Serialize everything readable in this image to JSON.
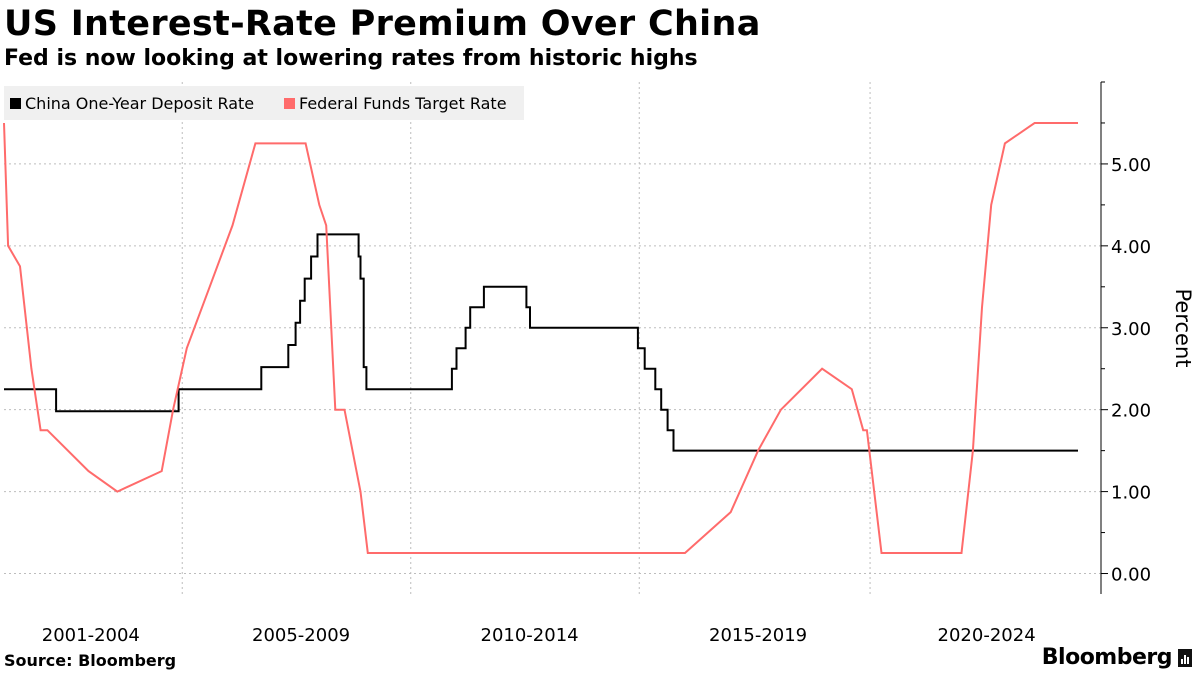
{
  "chart_data": {
    "type": "line",
    "title": "US Interest-Rate Premium Over China",
    "subtitle": "Fed is now looking at lowering rates from historic highs",
    "ylabel": "Percent",
    "xlabel": "",
    "ylim": [
      -0.25,
      6.0
    ],
    "xlim": [
      2001.0,
      2024.5
    ],
    "y_ticks": [
      0,
      1,
      2,
      3,
      4,
      5
    ],
    "y_tick_labels": [
      "0.00",
      "1.00",
      "2.00",
      "3.00",
      "4.00",
      "5.00"
    ],
    "x_tick_labels": [
      "2001-2004",
      "2005-2009",
      "2010-2014",
      "2015-2019",
      "2020-2024"
    ],
    "x_tick_centers": [
      2002.9,
      2007.5,
      2012.5,
      2017.5,
      2022.5
    ],
    "x_gridlines": [
      2004.9,
      2009.9,
      2014.9,
      2019.95
    ],
    "legend": {
      "position": "top-left"
    },
    "source": "Source: Bloomberg",
    "series": [
      {
        "name": "China One-Year Deposit Rate",
        "color": "#000000",
        "step": true,
        "x": [
          2001.0,
          2002.14,
          2004.82,
          2006.63,
          2007.22,
          2007.38,
          2007.48,
          2007.58,
          2007.72,
          2007.86,
          2008.0,
          2008.76,
          2008.8,
          2008.87,
          2008.93,
          2010.8,
          2010.9,
          2011.1,
          2011.2,
          2011.5,
          2011.7,
          2012.43,
          2012.51,
          2014.87,
          2015.02,
          2015.25,
          2015.38,
          2015.52,
          2015.65,
          2015.8,
          2024.5
        ],
        "values": [
          2.25,
          1.98,
          2.25,
          2.52,
          2.79,
          3.06,
          3.33,
          3.6,
          3.87,
          4.14,
          4.14,
          3.87,
          3.6,
          2.52,
          2.25,
          2.5,
          2.75,
          3.0,
          3.25,
          3.5,
          3.5,
          3.25,
          3.0,
          2.75,
          2.5,
          2.25,
          2.0,
          1.75,
          1.5,
          1.5,
          1.5
        ]
      },
      {
        "name": "Federal Funds Target Rate",
        "color": "#ff6b6b",
        "step": false,
        "x": [
          2001.0,
          2001.09,
          2001.35,
          2001.6,
          2001.8,
          2001.95,
          2002.85,
          2003.48,
          2004.45,
          2004.7,
          2005.0,
          2005.5,
          2006.0,
          2006.5,
          2007.6,
          2007.9,
          2008.05,
          2008.25,
          2008.45,
          2008.8,
          2008.96,
          2015.9,
          2016.9,
          2017.5,
          2018.0,
          2018.9,
          2019.55,
          2019.8,
          2019.88,
          2020.2,
          2021.95,
          2022.2,
          2022.4,
          2022.6,
          2022.9,
          2023.55,
          2024.5
        ],
        "values": [
          5.5,
          4.0,
          3.75,
          2.5,
          1.75,
          1.75,
          1.25,
          1.0,
          1.25,
          2.0,
          2.75,
          3.5,
          4.25,
          5.25,
          5.25,
          4.5,
          4.25,
          2.0,
          2.0,
          1.0,
          0.25,
          0.25,
          0.75,
          1.5,
          2.0,
          2.5,
          2.25,
          1.75,
          1.75,
          0.25,
          0.25,
          1.5,
          3.25,
          4.5,
          5.25,
          5.5,
          5.5
        ]
      }
    ]
  },
  "brand": {
    "name": "Bloomberg"
  }
}
